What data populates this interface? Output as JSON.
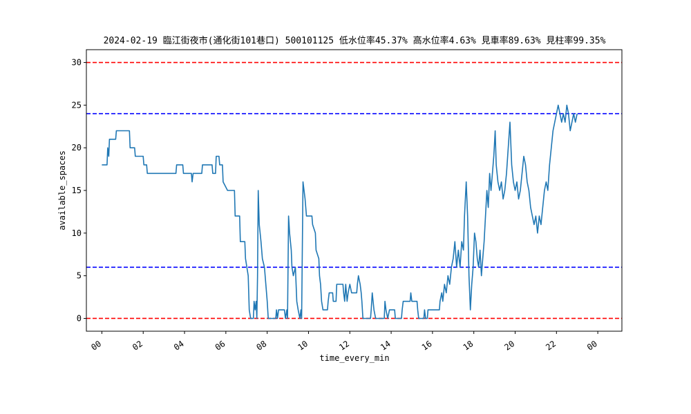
{
  "chart_data": {
    "type": "line",
    "title": "2024-02-19 臨江街夜市(通化街101巷口) 500101125 低水位率45.37% 高水位率4.63% 見車率89.63% 見柱率99.35%",
    "xlabel": "time_every_min",
    "ylabel": "available_spaces",
    "xlim": [
      "2024-02-18 23:15",
      "2024-02-20 01:10"
    ],
    "ylim": [
      -1.5,
      31.5
    ],
    "x_ticks": [
      "00",
      "02",
      "04",
      "06",
      "08",
      "10",
      "12",
      "14",
      "16",
      "18",
      "20",
      "22",
      "00"
    ],
    "y_ticks": [
      0,
      5,
      10,
      15,
      20,
      25,
      30
    ],
    "grid": false,
    "reference_lines": [
      {
        "y": 30,
        "color": "#ff0000",
        "style": "dashed"
      },
      {
        "y": 24,
        "color": "#0000ff",
        "style": "dashed"
      },
      {
        "y": 6,
        "color": "#0000ff",
        "style": "dashed"
      },
      {
        "y": 0,
        "color": "#ff0000",
        "style": "dashed"
      }
    ],
    "series": [
      {
        "color": "#1f77b4",
        "points": [
          [
            "00:00",
            18
          ],
          [
            "00:15",
            18
          ],
          [
            "00:17",
            20
          ],
          [
            "00:20",
            19
          ],
          [
            "00:22",
            21
          ],
          [
            "00:40",
            21
          ],
          [
            "00:42",
            22
          ],
          [
            "01:20",
            22
          ],
          [
            "01:22",
            20
          ],
          [
            "01:35",
            20
          ],
          [
            "01:37",
            19
          ],
          [
            "02:00",
            19
          ],
          [
            "02:02",
            18
          ],
          [
            "02:10",
            18
          ],
          [
            "02:12",
            17
          ],
          [
            "03:35",
            17
          ],
          [
            "03:37",
            18
          ],
          [
            "03:55",
            18
          ],
          [
            "03:57",
            17
          ],
          [
            "04:20",
            17
          ],
          [
            "04:22",
            16
          ],
          [
            "04:25",
            17
          ],
          [
            "04:50",
            17
          ],
          [
            "04:52",
            18
          ],
          [
            "05:20",
            18
          ],
          [
            "05:22",
            17
          ],
          [
            "05:30",
            17
          ],
          [
            "05:32",
            19
          ],
          [
            "05:40",
            19
          ],
          [
            "05:42",
            18
          ],
          [
            "05:50",
            18
          ],
          [
            "05:52",
            16
          ],
          [
            "06:05",
            15
          ],
          [
            "06:25",
            15
          ],
          [
            "06:27",
            12
          ],
          [
            "06:40",
            12
          ],
          [
            "06:42",
            9
          ],
          [
            "06:55",
            9
          ],
          [
            "06:57",
            7
          ],
          [
            "07:05",
            5
          ],
          [
            "07:08",
            1
          ],
          [
            "07:12",
            0
          ],
          [
            "07:20",
            0
          ],
          [
            "07:22",
            2
          ],
          [
            "07:25",
            1
          ],
          [
            "07:28",
            2
          ],
          [
            "07:30",
            0
          ],
          [
            "07:32",
            5
          ],
          [
            "07:34",
            15
          ],
          [
            "07:37",
            11
          ],
          [
            "07:42",
            9
          ],
          [
            "07:46",
            7
          ],
          [
            "07:52",
            6
          ],
          [
            "07:56",
            4
          ],
          [
            "08:00",
            2
          ],
          [
            "08:03",
            0
          ],
          [
            "08:25",
            0
          ],
          [
            "08:27",
            1
          ],
          [
            "08:30",
            0
          ],
          [
            "08:33",
            1
          ],
          [
            "08:50",
            1
          ],
          [
            "08:53",
            0
          ],
          [
            "08:57",
            1
          ],
          [
            "08:59",
            0
          ],
          [
            "09:02",
            12
          ],
          [
            "09:05",
            10
          ],
          [
            "09:10",
            8
          ],
          [
            "09:12",
            6
          ],
          [
            "09:16",
            5
          ],
          [
            "09:22",
            6
          ],
          [
            "09:26",
            2
          ],
          [
            "09:30",
            1
          ],
          [
            "09:35",
            0
          ],
          [
            "09:38",
            1
          ],
          [
            "09:40",
            0
          ],
          [
            "09:42",
            8
          ],
          [
            "09:44",
            16
          ],
          [
            "09:47",
            15
          ],
          [
            "09:50",
            14
          ],
          [
            "09:54",
            12
          ],
          [
            "10:10",
            12
          ],
          [
            "10:12",
            11
          ],
          [
            "10:20",
            10
          ],
          [
            "10:22",
            8
          ],
          [
            "10:30",
            7
          ],
          [
            "10:32",
            5
          ],
          [
            "10:35",
            4
          ],
          [
            "10:38",
            2
          ],
          [
            "10:42",
            1
          ],
          [
            "10:55",
            1
          ],
          [
            "10:57",
            2
          ],
          [
            "11:00",
            3
          ],
          [
            "11:10",
            3
          ],
          [
            "11:12",
            2
          ],
          [
            "11:20",
            2
          ],
          [
            "11:22",
            4
          ],
          [
            "11:40",
            4
          ],
          [
            "11:42",
            3
          ],
          [
            "11:45",
            2
          ],
          [
            "11:48",
            4
          ],
          [
            "11:52",
            2
          ],
          [
            "11:55",
            3
          ],
          [
            "12:00",
            4
          ],
          [
            "12:05",
            3
          ],
          [
            "12:20",
            3
          ],
          [
            "12:22",
            4
          ],
          [
            "12:25",
            5
          ],
          [
            "12:30",
            4
          ],
          [
            "12:33",
            3
          ],
          [
            "12:35",
            2
          ],
          [
            "12:38",
            0
          ],
          [
            "13:00",
            0
          ],
          [
            "13:02",
            1
          ],
          [
            "13:05",
            3
          ],
          [
            "13:10",
            1
          ],
          [
            "13:15",
            0
          ],
          [
            "13:40",
            0
          ],
          [
            "13:42",
            2
          ],
          [
            "13:45",
            1
          ],
          [
            "13:50",
            0
          ],
          [
            "13:55",
            1
          ],
          [
            "14:10",
            1
          ],
          [
            "14:12",
            0
          ],
          [
            "14:30",
            0
          ],
          [
            "14:32",
            1
          ],
          [
            "14:35",
            2
          ],
          [
            "14:55",
            2
          ],
          [
            "14:57",
            3
          ],
          [
            "15:00",
            2
          ],
          [
            "15:15",
            2
          ],
          [
            "15:17",
            1
          ],
          [
            "15:20",
            0
          ],
          [
            "15:35",
            0
          ],
          [
            "15:37",
            1
          ],
          [
            "15:40",
            0
          ],
          [
            "15:45",
            0
          ],
          [
            "15:47",
            1
          ],
          [
            "16:20",
            1
          ],
          [
            "16:22",
            2
          ],
          [
            "16:27",
            3
          ],
          [
            "16:30",
            2
          ],
          [
            "16:35",
            4
          ],
          [
            "16:40",
            3
          ],
          [
            "16:45",
            5
          ],
          [
            "16:50",
            4
          ],
          [
            "16:55",
            6
          ],
          [
            "17:00",
            7
          ],
          [
            "17:05",
            9
          ],
          [
            "17:10",
            6
          ],
          [
            "17:15",
            8
          ],
          [
            "17:20",
            6
          ],
          [
            "17:25",
            9
          ],
          [
            "17:30",
            8
          ],
          [
            "17:33",
            12
          ],
          [
            "17:38",
            16
          ],
          [
            "17:42",
            12
          ],
          [
            "17:46",
            5
          ],
          [
            "17:50",
            1
          ],
          [
            "17:54",
            4
          ],
          [
            "17:58",
            6
          ],
          [
            "18:02",
            10
          ],
          [
            "18:06",
            9
          ],
          [
            "18:10",
            7
          ],
          [
            "18:14",
            6
          ],
          [
            "18:18",
            8
          ],
          [
            "18:22",
            5
          ],
          [
            "18:26",
            7
          ],
          [
            "18:30",
            9
          ],
          [
            "18:34",
            12
          ],
          [
            "18:38",
            15
          ],
          [
            "18:42",
            13
          ],
          [
            "18:46",
            17
          ],
          [
            "18:50",
            15
          ],
          [
            "18:54",
            17
          ],
          [
            "18:58",
            19
          ],
          [
            "19:02",
            22
          ],
          [
            "19:05",
            18
          ],
          [
            "19:10",
            16
          ],
          [
            "19:15",
            15
          ],
          [
            "19:20",
            16
          ],
          [
            "19:25",
            14
          ],
          [
            "19:30",
            15
          ],
          [
            "19:35",
            17
          ],
          [
            "19:40",
            20
          ],
          [
            "19:45",
            23
          ],
          [
            "19:50",
            18
          ],
          [
            "19:55",
            16
          ],
          [
            "20:00",
            15
          ],
          [
            "20:05",
            16
          ],
          [
            "20:10",
            14
          ],
          [
            "20:15",
            15
          ],
          [
            "20:20",
            17
          ],
          [
            "20:25",
            19
          ],
          [
            "20:30",
            18
          ],
          [
            "20:35",
            16
          ],
          [
            "20:40",
            15
          ],
          [
            "20:45",
            13
          ],
          [
            "20:50",
            12
          ],
          [
            "20:55",
            11
          ],
          [
            "21:00",
            12
          ],
          [
            "21:05",
            10
          ],
          [
            "21:10",
            12
          ],
          [
            "21:15",
            11
          ],
          [
            "21:20",
            13
          ],
          [
            "21:25",
            15
          ],
          [
            "21:30",
            16
          ],
          [
            "21:35",
            15
          ],
          [
            "21:40",
            18
          ],
          [
            "21:45",
            20
          ],
          [
            "21:50",
            22
          ],
          [
            "21:55",
            23
          ],
          [
            "22:00",
            24
          ],
          [
            "22:05",
            25
          ],
          [
            "22:10",
            24
          ],
          [
            "22:15",
            23
          ],
          [
            "22:20",
            24
          ],
          [
            "22:25",
            23
          ],
          [
            "22:30",
            25
          ],
          [
            "22:35",
            24
          ],
          [
            "22:40",
            22
          ],
          [
            "22:45",
            23
          ],
          [
            "22:50",
            24
          ],
          [
            "22:55",
            23
          ],
          [
            "23:00",
            24
          ]
        ]
      }
    ]
  }
}
